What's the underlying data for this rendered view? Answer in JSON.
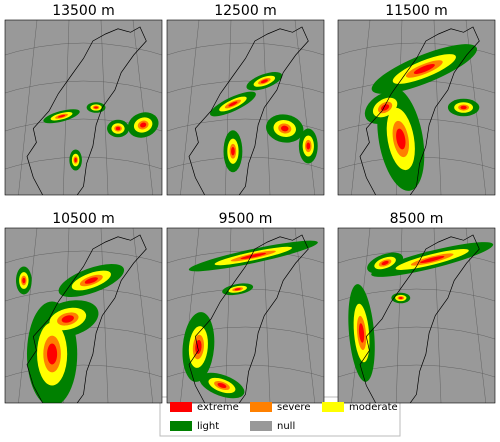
{
  "panels": [
    {
      "title": "13500 m"
    },
    {
      "title": "12500 m"
    },
    {
      "title": "11500 m"
    },
    {
      "title": "10500 m"
    },
    {
      "title": "9500 m"
    },
    {
      "title": "8500 m"
    }
  ],
  "legend": [
    {
      "label": "extreme",
      "color": "#ff0000"
    },
    {
      "label": "severe",
      "color": "#ff8000"
    },
    {
      "label": "moderate",
      "color": "#ffff00"
    },
    {
      "label": "light",
      "color": "#008000"
    },
    {
      "label": "null",
      "color": "#999999"
    }
  ]
}
